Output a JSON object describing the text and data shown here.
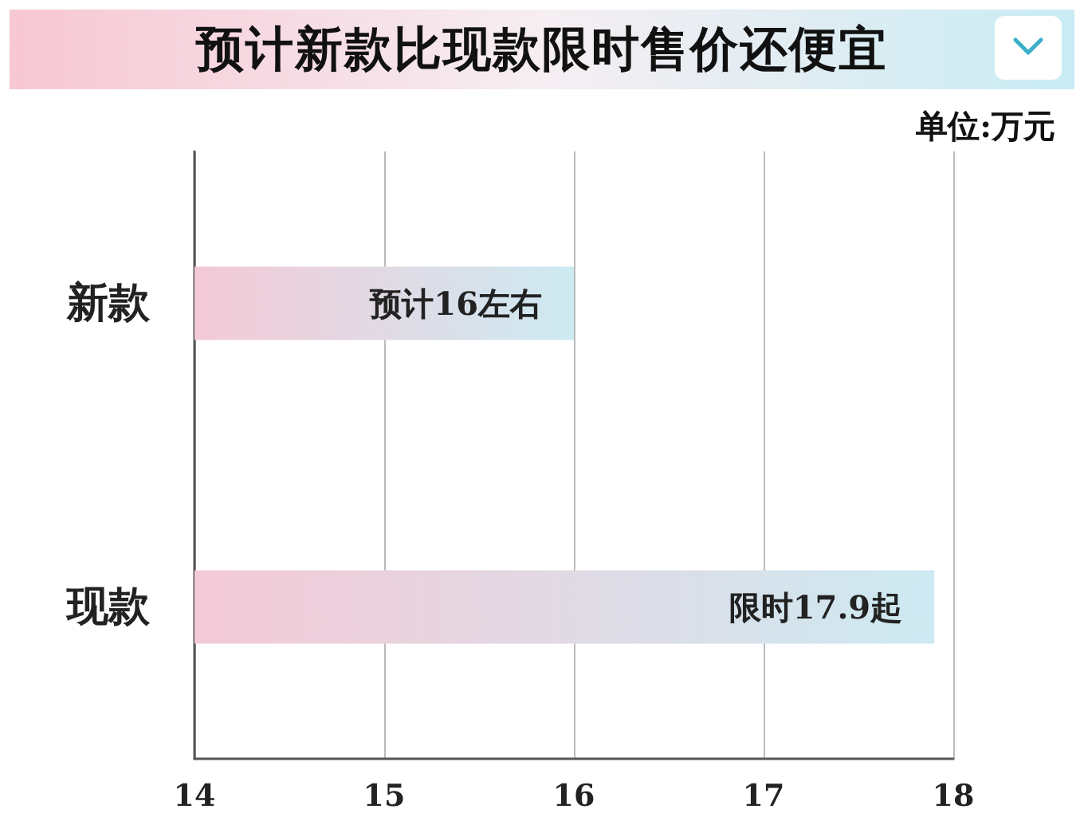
{
  "chart_data": {
    "type": "bar",
    "orientation": "horizontal",
    "title": "预计新款比现款限时售价还便宜",
    "subtitle": "单位:万元",
    "categories": [
      "新款",
      "现款"
    ],
    "values": [
      16,
      17.9
    ],
    "value_labels": [
      "预计16左右",
      "限时17.9起"
    ],
    "color": "#f4c9d6",
    "xlim": [
      14,
      18
    ],
    "xticks": [
      14,
      15,
      16,
      17,
      18
    ],
    "grid": "x"
  }
}
